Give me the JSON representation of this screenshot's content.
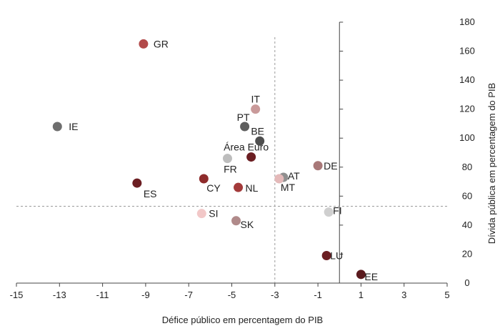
{
  "chart_data": {
    "type": "scatter",
    "title": "",
    "xlabel": "Défice público em percentagem do PIB",
    "ylabel": "Dívida pública em percentagem do PIB",
    "xlim": [
      -15,
      5
    ],
    "ylim": [
      0,
      180
    ],
    "xticks": [
      -15,
      -13,
      -11,
      -9,
      -7,
      -5,
      -3,
      -1,
      1,
      3,
      5
    ],
    "yticks": [
      0,
      20,
      40,
      60,
      80,
      100,
      120,
      140,
      160,
      180
    ],
    "reference_lines": {
      "x": -3,
      "y": 53
    },
    "grid": false,
    "points": [
      {
        "label": "GR",
        "x": -9.1,
        "y": 165,
        "color": "#b24a4a"
      },
      {
        "label": "IE",
        "x": -13.1,
        "y": 108,
        "color": "#6e6e6e"
      },
      {
        "label": "IT",
        "x": -3.9,
        "y": 120,
        "color": "#c99a9a"
      },
      {
        "label": "PT",
        "x": -4.4,
        "y": 108,
        "color": "#5e5e5e"
      },
      {
        "label": "BE",
        "x": -3.7,
        "y": 98,
        "color": "#4e4e4e"
      },
      {
        "label": "Área Euro",
        "x": -4.1,
        "y": 87,
        "color": "#6b1e22"
      },
      {
        "label": "FR",
        "x": -5.2,
        "y": 86,
        "color": "#bdbdbd"
      },
      {
        "label": "DE",
        "x": -1.0,
        "y": 81,
        "color": "#a87878"
      },
      {
        "label": "AT",
        "x": -2.6,
        "y": 73,
        "color": "#8f8f8f"
      },
      {
        "label": "MT",
        "x": -2.8,
        "y": 72,
        "color": "#e4b9b9"
      },
      {
        "label": "ES",
        "x": -9.4,
        "y": 69,
        "color": "#6b1e22"
      },
      {
        "label": "CY",
        "x": -6.3,
        "y": 72,
        "color": "#8e2b2b"
      },
      {
        "label": "NL",
        "x": -4.7,
        "y": 66,
        "color": "#a33a3a"
      },
      {
        "label": "SI",
        "x": -6.4,
        "y": 48,
        "color": "#f2c8c8"
      },
      {
        "label": "SK",
        "x": -4.8,
        "y": 43,
        "color": "#b08a8a"
      },
      {
        "label": "FI",
        "x": -0.5,
        "y": 49,
        "color": "#cfcfcf"
      },
      {
        "label": "LU",
        "x": -0.6,
        "y": 19,
        "color": "#6b1e22"
      },
      {
        "label": "EE",
        "x": 1.0,
        "y": 6,
        "color": "#5a1a1e"
      }
    ]
  }
}
